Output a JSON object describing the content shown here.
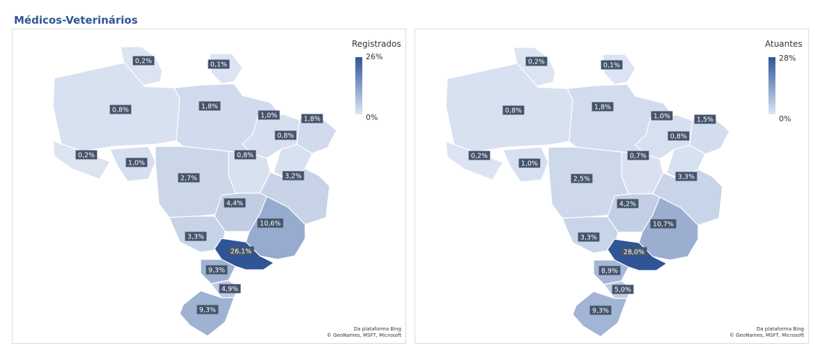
{
  "title": "Médicos-Veterinários",
  "colors": {
    "low": "#dde5f3",
    "high": "#2f5597",
    "label_bg": "#44546a",
    "title": "#2f5597"
  },
  "maps": [
    {
      "legend_title": "Registrados",
      "legend_max": "26%",
      "legend_min": "0%",
      "attribution_line1": "Da plataforma Bing",
      "attribution_line2": "© GeoNames, MSFT, Microsoft",
      "states": [
        {
          "id": "RR",
          "label": "0,2%",
          "value": 0.2
        },
        {
          "id": "AP",
          "label": "0,1%",
          "value": 0.1
        },
        {
          "id": "AM",
          "label": "0,8%",
          "value": 0.8
        },
        {
          "id": "PA",
          "label": "1,8%",
          "value": 1.8
        },
        {
          "id": "MA",
          "label": "1,0%",
          "value": 1.0
        },
        {
          "id": "CE",
          "label": "1,8%",
          "value": 1.8
        },
        {
          "id": "PI",
          "label": "0,8%",
          "value": 0.8
        },
        {
          "id": "AC",
          "label": "0,2%",
          "value": 0.2
        },
        {
          "id": "RO",
          "label": "1,0%",
          "value": 1.0
        },
        {
          "id": "TO",
          "label": "0,8%",
          "value": 0.8
        },
        {
          "id": "MT",
          "label": "2,7%",
          "value": 2.7
        },
        {
          "id": "BA",
          "label": "3,2%",
          "value": 3.2
        },
        {
          "id": "GO",
          "label": "4,4%",
          "value": 4.4
        },
        {
          "id": "MG",
          "label": "10,6%",
          "value": 10.6
        },
        {
          "id": "MS",
          "label": "3,3%",
          "value": 3.3
        },
        {
          "id": "SP",
          "label": "26,1%",
          "value": 26.1
        },
        {
          "id": "PR",
          "label": "9,3%",
          "value": 9.3
        },
        {
          "id": "SC",
          "label": "4,9%",
          "value": 4.9
        },
        {
          "id": "RS",
          "label": "9,3%",
          "value": 9.3
        }
      ]
    },
    {
      "legend_title": "Atuantes",
      "legend_max": "28%",
      "legend_min": "0%",
      "attribution_line1": "Da plataforma Bing",
      "attribution_line2": "© GeoNames, MSFT, Microsoft",
      "states": [
        {
          "id": "RR",
          "label": "0,2%",
          "value": 0.2
        },
        {
          "id": "AP",
          "label": "0,1%",
          "value": 0.1
        },
        {
          "id": "AM",
          "label": "0,8%",
          "value": 0.8
        },
        {
          "id": "PA",
          "label": "1,8%",
          "value": 1.8
        },
        {
          "id": "MA",
          "label": "1,0%",
          "value": 1.0
        },
        {
          "id": "CE",
          "label": "1,5%",
          "value": 1.5
        },
        {
          "id": "PI",
          "label": "0,8%",
          "value": 0.8
        },
        {
          "id": "AC",
          "label": "0,2%",
          "value": 0.2
        },
        {
          "id": "RO",
          "label": "1,0%",
          "value": 1.0
        },
        {
          "id": "TO",
          "label": "0,7%",
          "value": 0.7
        },
        {
          "id": "MT",
          "label": "2,5%",
          "value": 2.5
        },
        {
          "id": "BA",
          "label": "3,3%",
          "value": 3.3
        },
        {
          "id": "GO",
          "label": "4,2%",
          "value": 4.2
        },
        {
          "id": "MG",
          "label": "10,7%",
          "value": 10.7
        },
        {
          "id": "MS",
          "label": "3,3%",
          "value": 3.3
        },
        {
          "id": "SP",
          "label": "28,0%",
          "value": 28.0
        },
        {
          "id": "PR",
          "label": "8,9%",
          "value": 8.9
        },
        {
          "id": "SC",
          "label": "5,0%",
          "value": 5.0
        },
        {
          "id": "RS",
          "label": "9,3%",
          "value": 9.3
        }
      ]
    }
  ]
}
